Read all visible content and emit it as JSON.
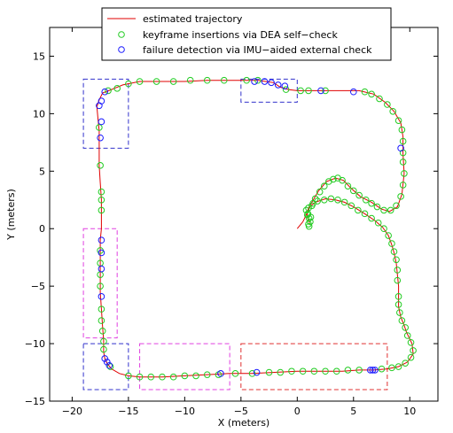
{
  "chart_data": {
    "type": "scatter",
    "title": "",
    "xlabel": "X (meters)",
    "ylabel": "Y (meters)",
    "xlim": [
      -22,
      12.5
    ],
    "ylim": [
      -15,
      17.5
    ],
    "xticks": [
      -20,
      -15,
      -10,
      -5,
      0,
      5,
      10
    ],
    "yticks": [
      -15,
      -10,
      -5,
      0,
      5,
      10,
      15
    ],
    "grid": false,
    "legend_position": "top-center",
    "colors": {
      "trajectory": "#e00000",
      "keyframe": "#22cc22",
      "failure": "#1a1aff",
      "box_blue": "#3333cc",
      "box_magenta": "#e040e0",
      "box_red": "#e03030"
    },
    "legend": [
      {
        "label": "estimated trajectory",
        "marker": "line"
      },
      {
        "label": "keyframe insertions via DEA self−check",
        "marker": "circle-green"
      },
      {
        "label": "failure detection via IMU−aided external check",
        "marker": "circle-blue"
      }
    ],
    "series": [
      {
        "name": "estimated trajectory",
        "type": "line",
        "points": [
          [
            0,
            0
          ],
          [
            0.5,
            0.6
          ],
          [
            0.9,
            1.4
          ],
          [
            1.3,
            2.3
          ],
          [
            1.9,
            3.3
          ],
          [
            2.6,
            4.1
          ],
          [
            3.4,
            4.4
          ],
          [
            4.1,
            4.2
          ],
          [
            4.8,
            3.5
          ],
          [
            5.6,
            2.8
          ],
          [
            6.6,
            2.3
          ],
          [
            7.5,
            1.7
          ],
          [
            8.2,
            1.5
          ],
          [
            8.9,
            1.9
          ],
          [
            9.3,
            3.0
          ],
          [
            9.5,
            4.8
          ],
          [
            9.4,
            6.5
          ],
          [
            9.4,
            8.0
          ],
          [
            9.2,
            9.2
          ],
          [
            8.6,
            10.2
          ],
          [
            7.8,
            11.0
          ],
          [
            6.8,
            11.7
          ],
          [
            5.5,
            12.0
          ],
          [
            4.0,
            12.0
          ],
          [
            2.5,
            12.0
          ],
          [
            1.0,
            12.0
          ],
          [
            0,
            12.0
          ],
          [
            -0.8,
            12.1
          ],
          [
            -1.5,
            12.3
          ],
          [
            -2.1,
            12.7
          ],
          [
            -2.8,
            12.8
          ],
          [
            -3.5,
            12.9
          ],
          [
            -4.5,
            12.9
          ],
          [
            -6,
            12.9
          ],
          [
            -8,
            12.9
          ],
          [
            -10,
            12.8
          ],
          [
            -12,
            12.8
          ],
          [
            -14,
            12.8
          ],
          [
            -15.5,
            12.5
          ],
          [
            -16.5,
            12.1
          ],
          [
            -17.3,
            11.8
          ],
          [
            -17.6,
            11.2
          ],
          [
            -17.8,
            10.6
          ],
          [
            -17.7,
            9.5
          ],
          [
            -17.6,
            8.5
          ],
          [
            -17.6,
            7
          ],
          [
            -17.6,
            5.5
          ],
          [
            -17.5,
            4
          ],
          [
            -17.4,
            2.5
          ],
          [
            -17.4,
            1
          ],
          [
            -17.4,
            0
          ],
          [
            -17.5,
            -1
          ],
          [
            -17.5,
            -2.5
          ],
          [
            -17.5,
            -4
          ],
          [
            -17.5,
            -5.5
          ],
          [
            -17.4,
            -7
          ],
          [
            -17.3,
            -8.5
          ],
          [
            -17.2,
            -9.7
          ],
          [
            -17.2,
            -10.7
          ],
          [
            -17.1,
            -11.3
          ],
          [
            -16.9,
            -11.7
          ],
          [
            -16.5,
            -12.2
          ],
          [
            -15.8,
            -12.6
          ],
          [
            -15,
            -12.8
          ],
          [
            -14,
            -12.9
          ],
          [
            -12,
            -12.9
          ],
          [
            -10,
            -12.8
          ],
          [
            -8,
            -12.7
          ],
          [
            -6,
            -12.6
          ],
          [
            -4,
            -12.6
          ],
          [
            -2,
            -12.5
          ],
          [
            0,
            -12.4
          ],
          [
            2,
            -12.4
          ],
          [
            4,
            -12.4
          ],
          [
            5.5,
            -12.3
          ],
          [
            6.8,
            -12.3
          ],
          [
            8,
            -12.2
          ],
          [
            9.0,
            -12.0
          ],
          [
            9.8,
            -11.6
          ],
          [
            10.3,
            -10.9
          ],
          [
            10.2,
            -10.0
          ],
          [
            9.9,
            -9.4
          ],
          [
            9.7,
            -9.0
          ],
          [
            9.5,
            -8.4
          ],
          [
            9.2,
            -7.7
          ],
          [
            9.0,
            -6.8
          ],
          [
            9.0,
            -6.0
          ],
          [
            9.0,
            -5.0
          ],
          [
            8.9,
            -4.0
          ],
          [
            8.8,
            -3.0
          ],
          [
            8.6,
            -2.1
          ],
          [
            8.4,
            -1.4
          ],
          [
            8.1,
            -0.6
          ],
          [
            7.6,
            0.1
          ],
          [
            6.9,
            0.7
          ],
          [
            6,
            1.3
          ],
          [
            5,
            1.9
          ],
          [
            4.2,
            2.3
          ],
          [
            3.4,
            2.5
          ],
          [
            2.5,
            2.6
          ],
          [
            1.6,
            2.3
          ],
          [
            1.0,
            1.8
          ],
          [
            0.9,
            1.4
          ],
          [
            0.9,
            1.0
          ],
          [
            1.1,
            0.5
          ]
        ]
      },
      {
        "name": "keyframe insertions via DEA self−check",
        "type": "scatter",
        "points": [
          [
            1.0,
            0.4
          ],
          [
            1.15,
            0.6
          ],
          [
            1.05,
            0.9
          ],
          [
            0.9,
            1.2
          ],
          [
            1.2,
            1.0
          ],
          [
            0.8,
            1.6
          ],
          [
            1.3,
            2.0
          ],
          [
            1.6,
            2.6
          ],
          [
            2.0,
            3.2
          ],
          [
            2.4,
            3.7
          ],
          [
            2.8,
            4.1
          ],
          [
            3.2,
            4.3
          ],
          [
            3.6,
            4.4
          ],
          [
            4.0,
            4.2
          ],
          [
            4.5,
            3.7
          ],
          [
            5.0,
            3.3
          ],
          [
            5.5,
            2.9
          ],
          [
            6.1,
            2.5
          ],
          [
            6.6,
            2.2
          ],
          [
            7.1,
            1.9
          ],
          [
            7.7,
            1.6
          ],
          [
            8.3,
            1.6
          ],
          [
            8.8,
            2.0
          ],
          [
            9.2,
            2.8
          ],
          [
            9.4,
            3.8
          ],
          [
            9.5,
            4.8
          ],
          [
            9.4,
            5.8
          ],
          [
            9.4,
            6.6
          ],
          [
            9.4,
            7.6
          ],
          [
            9.3,
            8.6
          ],
          [
            9.0,
            9.4
          ],
          [
            8.5,
            10.2
          ],
          [
            8.0,
            10.8
          ],
          [
            7.3,
            11.3
          ],
          [
            6.6,
            11.7
          ],
          [
            6.0,
            11.9
          ],
          [
            2.5,
            12.0
          ],
          [
            1.0,
            12.0
          ],
          [
            0.3,
            12.0
          ],
          [
            -1.0,
            12.1
          ],
          [
            -3.5,
            12.9
          ],
          [
            -4.5,
            12.9
          ],
          [
            -6.5,
            12.9
          ],
          [
            -8.0,
            12.9
          ],
          [
            -9.5,
            12.9
          ],
          [
            -11,
            12.8
          ],
          [
            -12.5,
            12.8
          ],
          [
            -14,
            12.8
          ],
          [
            -15.0,
            12.6
          ],
          [
            -16.0,
            12.2
          ],
          [
            -16.8,
            12.0
          ],
          [
            -17.6,
            8.8
          ],
          [
            -17.5,
            5.5
          ],
          [
            -17.4,
            3.2
          ],
          [
            -17.4,
            2.5
          ],
          [
            -17.4,
            1.6
          ],
          [
            -17.5,
            -1.9
          ],
          [
            -17.5,
            -3.0
          ],
          [
            -17.5,
            -4.0
          ],
          [
            -17.5,
            -5.0
          ],
          [
            -17.4,
            -7.0
          ],
          [
            -17.4,
            -8.0
          ],
          [
            -17.3,
            -8.9
          ],
          [
            -17.2,
            -9.8
          ],
          [
            -17.2,
            -10.5
          ],
          [
            -16.6,
            -12.0
          ],
          [
            -15.0,
            -12.8
          ],
          [
            -14.0,
            -12.9
          ],
          [
            -13.0,
            -12.9
          ],
          [
            -12.0,
            -12.9
          ],
          [
            -11.0,
            -12.9
          ],
          [
            -10.0,
            -12.8
          ],
          [
            -9.0,
            -12.8
          ],
          [
            -8.0,
            -12.7
          ],
          [
            -7.0,
            -12.7
          ],
          [
            -5.5,
            -12.6
          ],
          [
            -4.0,
            -12.6
          ],
          [
            -2.5,
            -12.5
          ],
          [
            -1.5,
            -12.5
          ],
          [
            -0.5,
            -12.4
          ],
          [
            0.5,
            -12.4
          ],
          [
            1.5,
            -12.4
          ],
          [
            2.5,
            -12.4
          ],
          [
            3.5,
            -12.4
          ],
          [
            4.5,
            -12.3
          ],
          [
            5.5,
            -12.3
          ],
          [
            7.5,
            -12.2
          ],
          [
            8.4,
            -12.1
          ],
          [
            9.0,
            -12.0
          ],
          [
            9.6,
            -11.7
          ],
          [
            10.1,
            -11.2
          ],
          [
            10.3,
            -10.6
          ],
          [
            10.1,
            -9.9
          ],
          [
            9.8,
            -9.3
          ],
          [
            9.6,
            -8.6
          ],
          [
            9.3,
            -8.0
          ],
          [
            9.1,
            -7.3
          ],
          [
            9.0,
            -6.6
          ],
          [
            9.0,
            -5.9
          ],
          [
            8.9,
            -4.5
          ],
          [
            8.9,
            -3.6
          ],
          [
            8.8,
            -2.7
          ],
          [
            8.6,
            -2.0
          ],
          [
            8.4,
            -1.3
          ],
          [
            8.1,
            -0.6
          ],
          [
            7.7,
            0.0
          ],
          [
            7.2,
            0.5
          ],
          [
            6.6,
            0.9
          ],
          [
            6.0,
            1.3
          ],
          [
            5.4,
            1.6
          ],
          [
            4.8,
            2.0
          ],
          [
            4.2,
            2.3
          ],
          [
            3.6,
            2.5
          ],
          [
            3.0,
            2.6
          ],
          [
            2.4,
            2.5
          ],
          [
            1.8,
            2.4
          ],
          [
            1.4,
            2.2
          ],
          [
            1.0,
            1.8
          ],
          [
            0.95,
            1.3
          ],
          [
            1.05,
            0.2
          ]
        ]
      },
      {
        "name": "failure detection via IMU−aided external check",
        "type": "scatter",
        "points": [
          [
            -17.1,
            11.9
          ],
          [
            -17.4,
            11.1
          ],
          [
            -17.6,
            10.7
          ],
          [
            -17.4,
            9.3
          ],
          [
            -17.5,
            7.9
          ],
          [
            -17.4,
            -1.0
          ],
          [
            -17.4,
            -2.1
          ],
          [
            -17.4,
            -3.5
          ],
          [
            -17.4,
            -5.9
          ],
          [
            -17.1,
            -11.3
          ],
          [
            -16.9,
            -11.6
          ],
          [
            -16.7,
            -11.9
          ],
          [
            -3.8,
            12.8
          ],
          [
            -2.9,
            12.8
          ],
          [
            -2.3,
            12.7
          ],
          [
            -1.7,
            12.5
          ],
          [
            -1.1,
            12.4
          ],
          [
            2.1,
            12.0
          ],
          [
            5.0,
            11.9
          ],
          [
            9.2,
            7.0
          ],
          [
            -6.8,
            -12.6
          ],
          [
            -3.6,
            -12.5
          ],
          [
            6.5,
            -12.3
          ],
          [
            6.7,
            -12.3
          ],
          [
            6.9,
            -12.3
          ]
        ]
      }
    ],
    "regions": [
      {
        "color": "blue",
        "x": [
          -19,
          -15
        ],
        "y": [
          7,
          13
        ]
      },
      {
        "color": "blue",
        "x": [
          -5,
          0
        ],
        "y": [
          11,
          13
        ]
      },
      {
        "color": "magenta",
        "x": [
          -19,
          -16
        ],
        "y": [
          -9.5,
          0
        ]
      },
      {
        "color": "blue",
        "x": [
          -19,
          -15
        ],
        "y": [
          -14,
          -10
        ]
      },
      {
        "color": "magenta",
        "x": [
          -14,
          -6
        ],
        "y": [
          -14,
          -10
        ]
      },
      {
        "color": "red",
        "x": [
          -5,
          8
        ],
        "y": [
          -14,
          -10
        ]
      }
    ]
  }
}
